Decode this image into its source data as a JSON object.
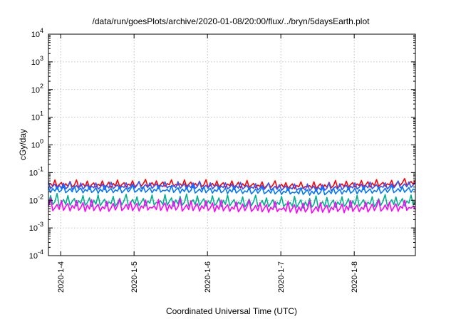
{
  "chart_data": {
    "type": "line",
    "title": "/data/run/goesPlots/archive/2020-01-08/20:00/flux/../bryn/5daysEarth.plot",
    "xlabel": "Coordinated Universal Time (UTC)",
    "ylabel": "cGy/day",
    "yscale": "log",
    "ylim": [
      0.0001,
      10000
    ],
    "xlim": [
      "2020-01-03T20:00",
      "2020-01-08T20:00"
    ],
    "grid": true,
    "y_ticks": [
      {
        "base": "10",
        "exp": "-4"
      },
      {
        "base": "10",
        "exp": "-3"
      },
      {
        "base": "10",
        "exp": "-2"
      },
      {
        "base": "10",
        "exp": "-1"
      },
      {
        "base": "10",
        "exp": "0"
      },
      {
        "base": "10",
        "exp": "1"
      },
      {
        "base": "10",
        "exp": "2"
      },
      {
        "base": "10",
        "exp": "3"
      },
      {
        "base": "10",
        "exp": "4"
      }
    ],
    "x_ticks": [
      {
        "label": "2020-1-4",
        "date": "2020-01-04T00:00"
      },
      {
        "label": "2020-1-5",
        "date": "2020-01-05T00:00"
      },
      {
        "label": "2020-1-6",
        "date": "2020-01-06T00:00"
      },
      {
        "label": "2020-1-7",
        "date": "2020-01-07T00:00"
      },
      {
        "label": "2020-1-8",
        "date": "2020-01-08T00:00"
      }
    ],
    "series_shape": [
      1.0,
      1.12,
      0.92,
      1.55,
      0.88,
      1.08,
      1.3,
      0.84,
      1.18,
      0.95,
      1.42,
      0.9,
      1.05,
      1.62,
      0.86,
      1.0,
      1.2,
      0.93,
      1.48,
      0.89,
      1.1,
      1.28,
      0.87,
      1.15,
      1.0,
      1.5,
      0.91,
      1.04,
      1.35,
      0.85,
      1.2,
      0.97,
      1.58,
      0.9,
      1.07,
      1.25,
      0.88,
      1.1,
      0.99,
      1.45,
      0.86,
      1.03,
      1.3,
      0.92,
      1.14,
      1.6,
      0.89,
      1.0,
      1.22,
      0.94,
      1.4,
      0.88,
      1.06,
      1.28,
      0.86,
      1.12,
      1.0,
      1.52,
      0.9,
      1.04
    ],
    "series": [
      {
        "color": "#ff0000",
        "points": [
          [
            "2020-01-03T20:00",
            0.036
          ],
          [
            "2020-01-04T00:00",
            0.034
          ],
          [
            "2020-01-04T12:00",
            0.033
          ],
          [
            "2020-01-05T00:00",
            0.035
          ],
          [
            "2020-01-05T12:00",
            0.036
          ],
          [
            "2020-01-06T00:00",
            0.034
          ],
          [
            "2020-01-06T12:00",
            0.033
          ],
          [
            "2020-01-07T00:00",
            0.031
          ],
          [
            "2020-01-07T12:00",
            0.03
          ],
          [
            "2020-01-08T00:00",
            0.034
          ],
          [
            "2020-01-08T12:00",
            0.036
          ],
          [
            "2020-01-08T20:00",
            0.04
          ]
        ]
      },
      {
        "color": "#3355ff",
        "points": [
          [
            "2020-01-03T20:00",
            0.03
          ],
          [
            "2020-01-04T00:00",
            0.029
          ],
          [
            "2020-01-04T12:00",
            0.028
          ],
          [
            "2020-01-05T00:00",
            0.03
          ],
          [
            "2020-01-05T12:00",
            0.031
          ],
          [
            "2020-01-06T00:00",
            0.029
          ],
          [
            "2020-01-06T12:00",
            0.028
          ],
          [
            "2020-01-07T00:00",
            0.026
          ],
          [
            "2020-01-07T12:00",
            0.025
          ],
          [
            "2020-01-08T00:00",
            0.028
          ],
          [
            "2020-01-08T12:00",
            0.03
          ],
          [
            "2020-01-08T20:00",
            0.034
          ]
        ]
      },
      {
        "color": "#0077ff",
        "points": [
          [
            "2020-01-03T20:00",
            0.023
          ],
          [
            "2020-01-04T00:00",
            0.022
          ],
          [
            "2020-01-04T12:00",
            0.021
          ],
          [
            "2020-01-05T00:00",
            0.022
          ],
          [
            "2020-01-05T12:00",
            0.022
          ],
          [
            "2020-01-06T00:00",
            0.021
          ],
          [
            "2020-01-06T12:00",
            0.02
          ],
          [
            "2020-01-07T00:00",
            0.019
          ],
          [
            "2020-01-07T12:00",
            0.018
          ],
          [
            "2020-01-08T00:00",
            0.02
          ],
          [
            "2020-01-08T12:00",
            0.021
          ],
          [
            "2020-01-08T20:00",
            0.023
          ]
        ]
      },
      {
        "color": "#00b090",
        "points": [
          [
            "2020-01-03T20:00",
            0.0085
          ],
          [
            "2020-01-04T00:00",
            0.008
          ],
          [
            "2020-01-04T12:00",
            0.0075
          ],
          [
            "2020-01-05T00:00",
            0.0078
          ],
          [
            "2020-01-05T12:00",
            0.008
          ],
          [
            "2020-01-06T00:00",
            0.0076
          ],
          [
            "2020-01-06T12:00",
            0.0073
          ],
          [
            "2020-01-07T00:00",
            0.007
          ],
          [
            "2020-01-07T12:00",
            0.0066
          ],
          [
            "2020-01-08T00:00",
            0.0072
          ],
          [
            "2020-01-08T12:00",
            0.0076
          ],
          [
            "2020-01-08T20:00",
            0.008
          ]
        ]
      },
      {
        "color": "#ff00ff",
        "points": [
          [
            "2020-01-03T20:00",
            0.0055
          ],
          [
            "2020-01-04T00:00",
            0.0052
          ],
          [
            "2020-01-04T12:00",
            0.005
          ],
          [
            "2020-01-05T00:00",
            0.0052
          ],
          [
            "2020-01-05T12:00",
            0.0053
          ],
          [
            "2020-01-06T00:00",
            0.005
          ],
          [
            "2020-01-06T12:00",
            0.0048
          ],
          [
            "2020-01-07T00:00",
            0.0046
          ],
          [
            "2020-01-07T12:00",
            0.0044
          ],
          [
            "2020-01-08T00:00",
            0.0047
          ],
          [
            "2020-01-08T12:00",
            0.005
          ],
          [
            "2020-01-08T20:00",
            0.0052
          ]
        ]
      }
    ]
  }
}
